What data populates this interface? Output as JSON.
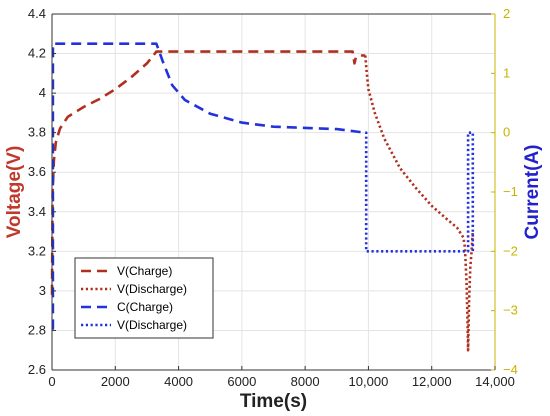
{
  "chart_data": {
    "type": "line",
    "xlabel": "Time(s)",
    "ylabel_left": "Voltage(V)",
    "ylabel_right": "Current(A)",
    "xlim": [
      0,
      14000
    ],
    "ylim_left": [
      2.6,
      4.4
    ],
    "ylim_right": [
      -4,
      2
    ],
    "xticks": [
      0,
      2000,
      4000,
      6000,
      8000,
      10000,
      12000,
      14000
    ],
    "xtick_labels": [
      "0",
      "2000",
      "4000",
      "6000",
      "8000",
      "10,000",
      "12,000",
      "14,000"
    ],
    "yticks_left": [
      2.6,
      2.8,
      3,
      3.2,
      3.4,
      3.6,
      3.8,
      4,
      4.2,
      4.4
    ],
    "ytick_labels_left": [
      "2.6",
      "2.8",
      "3",
      "3.2",
      "3.4",
      "3.6",
      "3.8",
      "4",
      "4.2",
      "4.4"
    ],
    "yticks_right": [
      -4,
      -3,
      -2,
      -1,
      0,
      1,
      2
    ],
    "ytick_labels_right": [
      "−4",
      "−3",
      "−2",
      "−1",
      "0",
      "1",
      "2"
    ],
    "grid": true,
    "legend_position": "bottom-left",
    "colors": {
      "left_axis": "#c0392b",
      "right_axis": "#2222cc",
      "right_ticks": "#c8b400"
    },
    "series": [
      {
        "name": "V(Charge)",
        "axis": "left",
        "color": "#b03020",
        "style": "dashed",
        "x": [
          0,
          20,
          60,
          120,
          250,
          500,
          1000,
          1500,
          2000,
          2500,
          3000,
          3200,
          3300,
          4000,
          6000,
          8000,
          9500,
          9560,
          9600,
          9700,
          9900
        ],
        "y": [
          2.98,
          3.5,
          3.66,
          3.75,
          3.82,
          3.88,
          3.93,
          3.97,
          4.02,
          4.08,
          4.15,
          4.19,
          4.21,
          4.21,
          4.21,
          4.21,
          4.21,
          4.15,
          4.18,
          4.19,
          4.19
        ]
      },
      {
        "name": "V(Discharge)",
        "axis": "left",
        "color": "#b03020",
        "style": "dotted",
        "x": [
          9900,
          9950,
          10000,
          10200,
          10500,
          11000,
          11500,
          12000,
          12500,
          12800,
          13000,
          13050,
          13100,
          13130,
          13150,
          13180,
          13220,
          13260,
          13300
        ],
        "y": [
          4.19,
          4.1,
          4.02,
          3.9,
          3.77,
          3.62,
          3.52,
          3.43,
          3.36,
          3.32,
          3.27,
          3.22,
          3.05,
          2.85,
          2.7,
          2.95,
          3.12,
          3.2,
          3.3
        ]
      },
      {
        "name": "C(Charge)",
        "axis": "right",
        "color": "#2233dd",
        "style": "dashed",
        "x": [
          0,
          30,
          30,
          3300,
          3500,
          3800,
          4200,
          5000,
          6000,
          7000,
          8000,
          9000,
          9600,
          9900
        ],
        "y": [
          -3.3,
          -3.3,
          1.5,
          1.5,
          1.2,
          0.8,
          0.55,
          0.32,
          0.17,
          0.1,
          0.08,
          0.06,
          0.02,
          0.0
        ]
      },
      {
        "name": "V(Discharge)",
        "axis": "right",
        "color": "#2233dd",
        "style": "dotted",
        "x": [
          9900,
          9930,
          9930,
          13150,
          13150,
          13300,
          13300
        ],
        "y": [
          0.0,
          0.0,
          -2.0,
          -2.0,
          0.0,
          0.0,
          -2.0
        ]
      }
    ]
  }
}
